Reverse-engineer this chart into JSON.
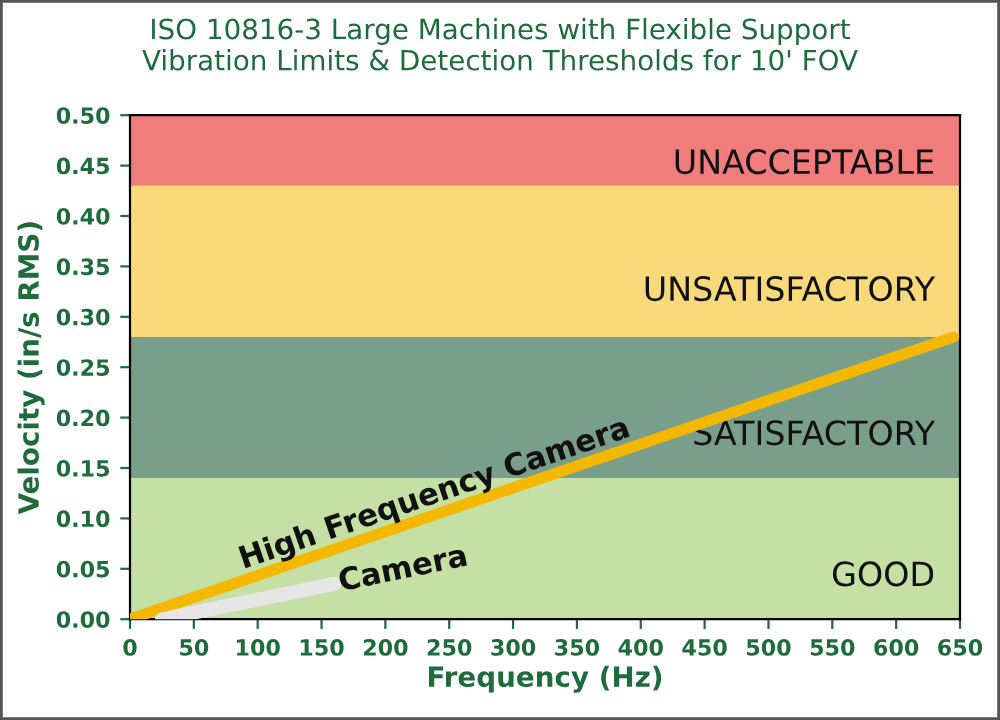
{
  "chart_data": {
    "type": "line",
    "title": "ISO 10816-3 Large Machines with Flexible Support\nVibration Limits & Detection Thresholds for 10' FOV",
    "xlabel": "Frequency (Hz)",
    "ylabel": "Velocity (in/s RMS)",
    "series": [
      {
        "name": "High Frequency Camera",
        "color": "#f5b800",
        "x": [
          0,
          645
        ],
        "values": [
          0,
          0.28
        ]
      },
      {
        "name": "Camera",
        "color": "#e6e6e6",
        "x": [
          25,
          160
        ],
        "values": [
          0.0,
          0.035
        ]
      }
    ],
    "bands": [
      {
        "axis": "y",
        "from": 0,
        "to": 0.14,
        "label": "GOOD",
        "color": "#c5e0a5"
      },
      {
        "axis": "y",
        "from": 0.14,
        "to": 0.28,
        "label": "SATISFACTORY",
        "color": "#7a9e8c"
      },
      {
        "axis": "y",
        "from": 0.28,
        "to": 0.43,
        "label": "UNSATISFACTORY",
        "color": "#fad97a"
      },
      {
        "axis": "y",
        "from": 0.43,
        "to": 0.5,
        "label": "UNACCEPTABLE",
        "color": "#f07c7c"
      }
    ],
    "xlim": [
      0,
      650
    ],
    "ylim": [
      0,
      0.5
    ],
    "xticks": [
      0,
      50,
      100,
      150,
      200,
      250,
      300,
      350,
      400,
      450,
      500,
      550,
      600,
      650
    ],
    "yticks": [
      {
        "value": 0,
        "label": "0.00"
      },
      {
        "value": 0.05,
        "label": "0.05"
      },
      {
        "value": 0.1,
        "label": "0.10"
      },
      {
        "value": 0.15,
        "label": "0.15"
      },
      {
        "value": 0.2,
        "label": "0.20"
      },
      {
        "value": 0.25,
        "label": "0.25"
      },
      {
        "value": 0.3,
        "label": "0.30"
      },
      {
        "value": 0.35,
        "label": "0.35"
      },
      {
        "value": 0.4,
        "label": "0.40"
      },
      {
        "value": 0.45,
        "label": "0.45"
      },
      {
        "value": 0.5,
        "label": "0.50"
      }
    ],
    "grid": false,
    "legend": false
  }
}
